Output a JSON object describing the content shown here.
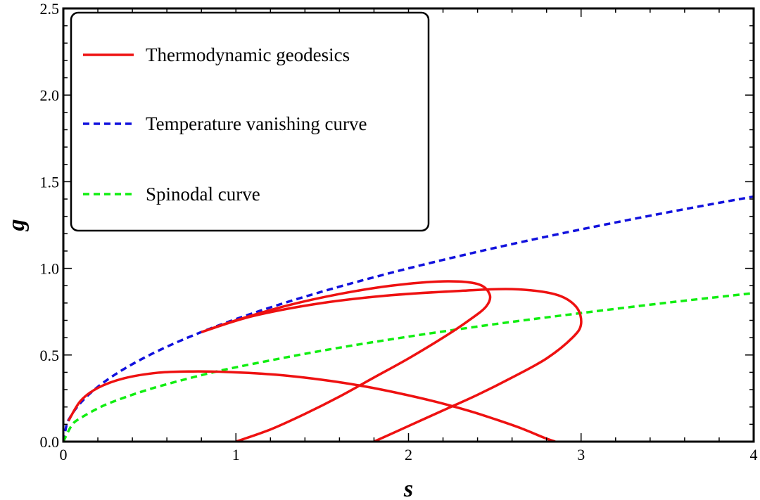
{
  "chart_data": {
    "type": "line",
    "xlabel": "s",
    "ylabel": "g",
    "xlim": [
      0,
      4
    ],
    "ylim": [
      0,
      2.5
    ],
    "x_ticks": [
      0,
      1,
      2,
      3,
      4
    ],
    "x_tick_labels": [
      "0",
      "1",
      "2",
      "3",
      "4"
    ],
    "y_ticks": [
      0,
      0.5,
      1,
      1.5,
      2,
      2.5
    ],
    "y_tick_labels": [
      "0.0",
      "0.5",
      "1.0",
      "1.5",
      "2.0",
      "2.5"
    ],
    "legend_position": "top-left",
    "colors": {
      "geodesics": "#ee1111",
      "temperature": "#1111dd",
      "spinodal": "#11ee11"
    },
    "series": [
      {
        "name": "Temperature vanishing curve",
        "style": "dashed",
        "formula": "g = sqrt(s/2)",
        "x": [
          0,
          0.05,
          0.1,
          0.2,
          0.3,
          0.5,
          0.75,
          1,
          1.5,
          2,
          2.5,
          3,
          3.5,
          4
        ],
        "y": [
          0,
          0.158,
          0.224,
          0.316,
          0.387,
          0.5,
          0.612,
          0.707,
          0.866,
          1.0,
          1.118,
          1.225,
          1.323,
          1.414
        ]
      },
      {
        "name": "Spinodal curve",
        "style": "dashed",
        "x": [
          0,
          0.05,
          0.1,
          0.2,
          0.3,
          0.5,
          0.75,
          1,
          1.5,
          2,
          2.5,
          3,
          3.5,
          4
        ],
        "y": [
          0,
          0.096,
          0.136,
          0.192,
          0.235,
          0.303,
          0.371,
          0.429,
          0.525,
          0.606,
          0.678,
          0.742,
          0.802,
          0.857
        ]
      },
      {
        "name": "Thermodynamic geodesics",
        "style": "solid",
        "x": [
          0.03,
          0.1,
          0.2,
          0.35,
          0.55,
          0.75,
          0.95,
          1.15,
          1.35,
          1.55,
          1.75,
          1.95,
          2.15,
          2.35,
          2.5,
          2.65,
          2.78,
          2.85
        ],
        "y": [
          0.12,
          0.235,
          0.31,
          0.365,
          0.398,
          0.405,
          0.402,
          0.392,
          0.375,
          0.35,
          0.318,
          0.278,
          0.232,
          0.178,
          0.13,
          0.078,
          0.025,
          0.0
        ]
      },
      {
        "name": "",
        "style": "solid",
        "x": [
          0.8,
          1.0,
          1.3,
          1.6,
          1.9,
          2.2,
          2.4,
          2.47,
          2.45,
          2.35,
          2.2,
          2.0,
          1.8,
          1.6,
          1.4,
          1.2,
          1.0
        ],
        "y": [
          0.632,
          0.7,
          0.786,
          0.852,
          0.9,
          0.925,
          0.91,
          0.85,
          0.78,
          0.7,
          0.6,
          0.48,
          0.37,
          0.26,
          0.16,
          0.07,
          0.0
        ]
      },
      {
        "name": "",
        "style": "solid",
        "x": [
          0.8,
          1.1,
          1.5,
          1.9,
          2.3,
          2.6,
          2.85,
          2.97,
          3.0,
          2.95,
          2.8,
          2.6,
          2.4,
          2.2,
          2.0,
          1.8
        ],
        "y": [
          0.632,
          0.725,
          0.8,
          0.845,
          0.87,
          0.88,
          0.85,
          0.78,
          0.68,
          0.6,
          0.48,
          0.37,
          0.27,
          0.18,
          0.09,
          0.0
        ]
      }
    ],
    "legend": [
      {
        "label": "Thermodynamic geodesics",
        "series_index": 2
      },
      {
        "label": "Temperature vanishing curve",
        "series_index": 0
      },
      {
        "label": "Spinodal curve",
        "series_index": 1
      }
    ]
  }
}
